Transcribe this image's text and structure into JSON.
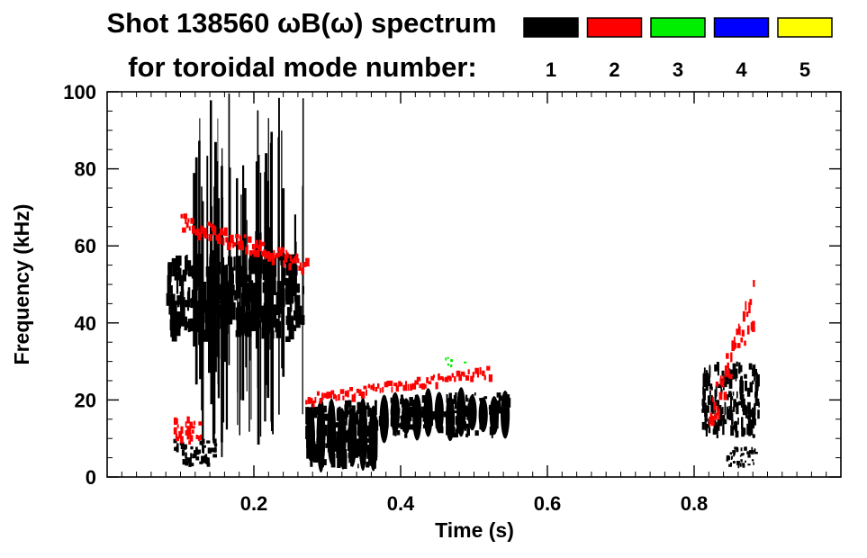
{
  "chart_data": {
    "type": "heatmap",
    "title": "Shot 138560 ωB(ω) spectrum",
    "subtitle": "for toroidal mode number:",
    "xlabel": "Time (s)",
    "ylabel": "Frequency (kHz)",
    "xlim": [
      0.0,
      1.0
    ],
    "ylim": [
      0,
      100
    ],
    "x_ticks": [
      0.2,
      0.4,
      0.6,
      0.8
    ],
    "x_tick_labels": [
      "0.2",
      "0.4",
      "0.6",
      "0.8"
    ],
    "y_ticks": [
      0,
      20,
      40,
      60,
      80,
      100
    ],
    "y_tick_labels": [
      "0",
      "20",
      "40",
      "60",
      "80",
      "100"
    ],
    "legend_placement": "top-right",
    "legend": [
      {
        "label": "1",
        "color": "#000000"
      },
      {
        "label": "2",
        "color": "#ff0000"
      },
      {
        "label": "3",
        "color": "#00ee00"
      },
      {
        "label": "4",
        "color": "#0000ff"
      },
      {
        "label": "5",
        "color": "#ffff00"
      }
    ],
    "features": [
      {
        "name": "n1-early-broadband",
        "mode": "1",
        "t": [
          0.08,
          0.27
        ],
        "f": [
          35,
          58
        ]
      },
      {
        "name": "n1-early-bursts",
        "mode": "1",
        "t": [
          0.11,
          0.27
        ],
        "f": [
          5,
          100
        ]
      },
      {
        "name": "n1-low-freq-early",
        "mode": "1",
        "t": [
          0.09,
          0.15
        ],
        "f": [
          2,
          10
        ]
      },
      {
        "name": "n2-early-chirp",
        "mode": "2",
        "t": [
          0.1,
          0.27
        ],
        "f": [
          55,
          66
        ]
      },
      {
        "name": "n2-low-freq-early",
        "mode": "2",
        "t": [
          0.09,
          0.13
        ],
        "f": [
          8,
          16
        ]
      },
      {
        "name": "n1-fishbone-bursts",
        "mode": "1",
        "t": [
          0.27,
          0.37
        ],
        "f": [
          2,
          20
        ]
      },
      {
        "name": "n1-chirping-mode",
        "mode": "1",
        "t": [
          0.37,
          0.55
        ],
        "f": [
          10,
          22
        ]
      },
      {
        "name": "n2-chirping-mode",
        "mode": "2",
        "t": [
          0.27,
          0.52
        ],
        "f": [
          20,
          27
        ]
      },
      {
        "name": "n3-weak",
        "mode": "3",
        "t": [
          0.46,
          0.49
        ],
        "f": [
          28,
          32
        ]
      },
      {
        "name": "n1-late-mode",
        "mode": "1",
        "t": [
          0.81,
          0.89
        ],
        "f": [
          10,
          30
        ]
      },
      {
        "name": "n2-late-mode",
        "mode": "2",
        "t": [
          0.82,
          0.88
        ],
        "f": [
          15,
          45
        ]
      },
      {
        "name": "n1-late-low-freq",
        "mode": "1",
        "t": [
          0.84,
          0.89
        ],
        "f": [
          2,
          8
        ]
      }
    ]
  }
}
